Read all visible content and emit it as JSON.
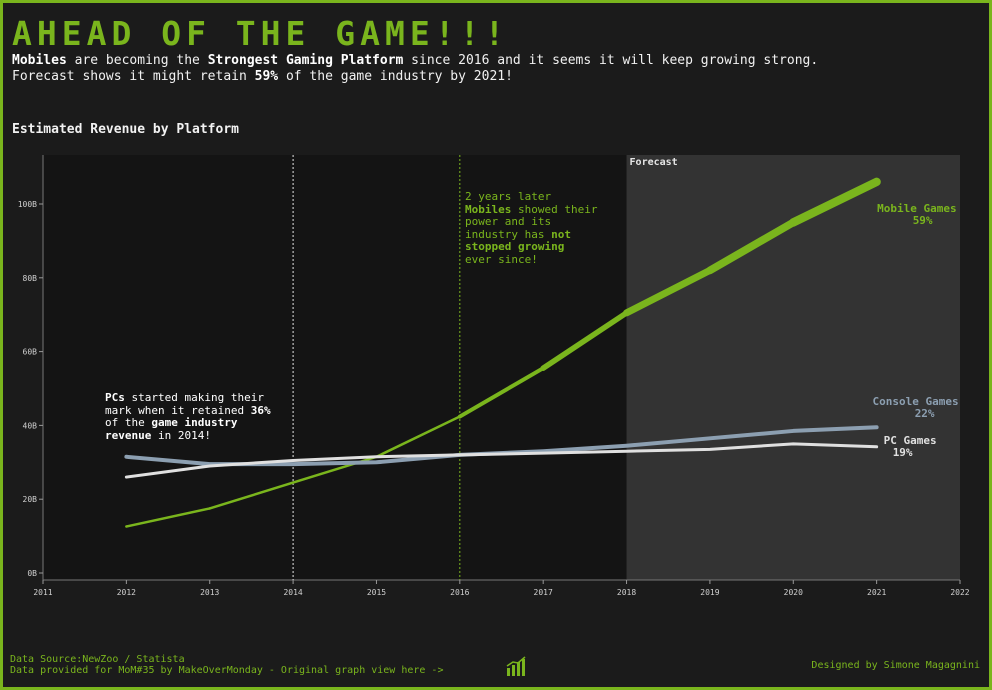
{
  "header": {
    "title": "AHEAD OF THE GAME!!!",
    "subtitle_parts": [
      "Mobiles",
      " are becoming the ",
      "Strongest Gaming Platform",
      " since 2016 and it seems it will keep growing strong."
    ],
    "subtitle_line2_parts": [
      "Forecast shows it might retain ",
      "59%",
      " of the game industry by 2021!"
    ]
  },
  "chart_title": "Estimated Revenue by Platform",
  "colors": {
    "mobile": "#7ab51d",
    "console": "#8c9fb1",
    "pc": "#e0e0e0",
    "forecast_band": "#333333",
    "accent": "#7ab51d"
  },
  "chart_data": {
    "type": "line",
    "x": [
      2012,
      2013,
      2014,
      2015,
      2016,
      2017,
      2018,
      2019,
      2020,
      2021
    ],
    "xlim": [
      2011,
      2022
    ],
    "x_ticks": [
      "2011",
      "2012",
      "2013",
      "2014",
      "2015",
      "2016",
      "2017",
      "2018",
      "2019",
      "2020",
      "2021",
      "2022"
    ],
    "ylim": [
      0,
      114
    ],
    "y_ticks": [
      0,
      20,
      40,
      60,
      80,
      100
    ],
    "y_tick_labels": [
      "0B",
      "20B",
      "40B",
      "60B",
      "80B",
      "100B"
    ],
    "forecast_from": 2018,
    "forecast_label": "Forecast",
    "reference_lines": [
      2014,
      2016
    ],
    "series": [
      {
        "name": "Mobile Games",
        "share": "59%",
        "color": "#7ab51d",
        "values": [
          12.6,
          17.5,
          24.5,
          31.5,
          42.4,
          55.5,
          70.5,
          82.0,
          95.0,
          106.0
        ]
      },
      {
        "name": "Console Games",
        "share": "22%",
        "color": "#8c9fb1",
        "values": [
          31.5,
          29.5,
          29.5,
          30.0,
          32.0,
          33.0,
          34.5,
          36.5,
          38.5,
          39.5
        ]
      },
      {
        "name": "PC Games",
        "share": "19%",
        "color": "#e0e0e0",
        "values": [
          26.0,
          29.0,
          30.5,
          31.5,
          32.0,
          32.5,
          33.0,
          33.5,
          35.0,
          34.2
        ]
      }
    ]
  },
  "annotations": {
    "pc": {
      "l1a": "PCs",
      "l1b": " started making their",
      "l2a": "mark when it retained ",
      "l2b": "36%",
      "l3a": "of the ",
      "l3b": "game industry",
      "l4a": "revenue",
      "l4b": " in 2014!"
    },
    "mobile": {
      "l1": "2 years later",
      "l2a": "Mobiles",
      "l2b": " showed their",
      "l3": "power and its",
      "l4a": "industry has ",
      "l4b": "not",
      "l5": "stopped growing",
      "l6": "ever since!"
    }
  },
  "footer": {
    "source": "Data Source:NewZoo / Statista",
    "provided": "Data provided for MoM#35 by MakeOverMonday - Original graph view here ->",
    "credit": "Designed by Simone Magagnini"
  }
}
